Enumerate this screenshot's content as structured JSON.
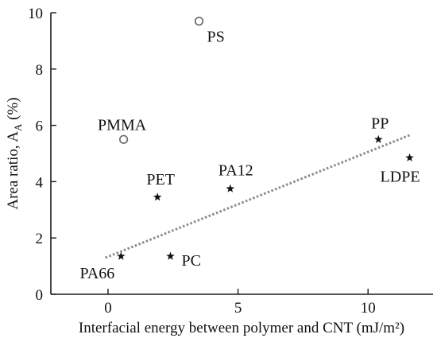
{
  "chart_data": {
    "type": "scatter",
    "title": "",
    "xlabel": "Interfacial energy between polymer and CNT (mJ/m²)",
    "ylabel_main": "Area ratio, A",
    "ylabel_sub": "A",
    "ylabel_unit": " (%)",
    "xlim": [
      -2.2,
      12.5
    ],
    "ylim": [
      0,
      10
    ],
    "xticks": [
      0,
      5,
      10
    ],
    "yticks": [
      0,
      2,
      4,
      6,
      8,
      10
    ],
    "grid": false,
    "points": [
      {
        "label": "PS",
        "x": 3.5,
        "y": 9.7,
        "marker": "open-circle",
        "label_side": "below-right"
      },
      {
        "label": "PMMA",
        "x": 0.6,
        "y": 5.5,
        "marker": "open-circle",
        "label_side": "above-left"
      },
      {
        "label": "PET",
        "x": 1.9,
        "y": 3.45,
        "marker": "star",
        "label_side": "above-left"
      },
      {
        "label": "PA12",
        "x": 4.7,
        "y": 3.75,
        "marker": "star",
        "label_side": "above-left"
      },
      {
        "label": "PP",
        "x": 10.4,
        "y": 5.5,
        "marker": "star",
        "label_side": "above-left"
      },
      {
        "label": "LDPE",
        "x": 11.6,
        "y": 4.85,
        "marker": "star",
        "label_side": "below-left"
      },
      {
        "label": "PA66",
        "x": 0.5,
        "y": 1.35,
        "marker": "star",
        "label_side": "below-left"
      },
      {
        "label": "PC",
        "x": 2.4,
        "y": 1.35,
        "marker": "star",
        "label_side": "right"
      }
    ],
    "trendline": {
      "style": "dotted",
      "x": [
        -0.1,
        11.6
      ],
      "y": [
        1.3,
        5.65
      ]
    }
  }
}
